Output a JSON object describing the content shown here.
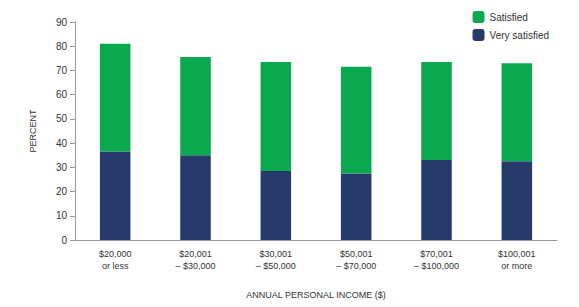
{
  "chart_data": {
    "type": "bar",
    "stacked": true,
    "x_label": "ANNUAL PERSONAL INCOME ($)",
    "y_label": "PERCENT",
    "categories": [
      "$20,000\nor less",
      "$20,001\n– $30,000",
      "$30,001\n– $50,000",
      "$50,001\n– $70,000",
      "$70,001\n– $100,000",
      "$100,001\nor more"
    ],
    "series": [
      {
        "name": "Very satisfied",
        "color": "#263a6b",
        "values": [
          36.5,
          35,
          28.5,
          27.5,
          33,
          32.5
        ]
      },
      {
        "name": "Satisfied",
        "color": "#0aa84f",
        "values": [
          44.5,
          40.5,
          45,
          44,
          40.5,
          40.5
        ]
      }
    ],
    "ylim": [
      0,
      90
    ],
    "yticks": [
      0,
      10,
      20,
      30,
      40,
      50,
      60,
      70,
      80,
      90
    ],
    "grid": false,
    "legend": "top-right"
  }
}
